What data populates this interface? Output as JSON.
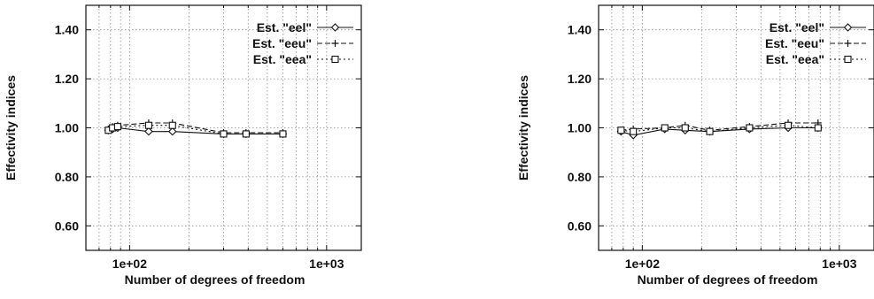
{
  "chart_data": [
    {
      "type": "line",
      "xscale": "log",
      "xlim": [
        60,
        1500
      ],
      "ylim": [
        0.5,
        1.5
      ],
      "grid": true,
      "legend_position": "top-right",
      "xlabel": "Number of degrees of freedom",
      "ylabel": "Effectivity indices",
      "xticks": [
        {
          "value": 100,
          "label": "1e+02"
        },
        {
          "value": 1000,
          "label": "1e+03"
        }
      ],
      "yticks": [
        {
          "value": 0.6,
          "label": "0.60"
        },
        {
          "value": 0.8,
          "label": "0.80"
        },
        {
          "value": 1.0,
          "label": "1.00"
        },
        {
          "value": 1.2,
          "label": "1.20"
        },
        {
          "value": 1.4,
          "label": "1.40"
        }
      ],
      "series": [
        {
          "name": "Est. \"eel\"",
          "marker": "diamond",
          "dash": "solid",
          "x": [
            78,
            82,
            87,
            125,
            165,
            300,
            390,
            600
          ],
          "y": [
            0.99,
            0.995,
            1.0,
            0.985,
            0.985,
            0.975,
            0.975,
            0.975
          ]
        },
        {
          "name": "Est. \"eeu\"",
          "marker": "plus",
          "dash": "dashed",
          "x": [
            78,
            82,
            87,
            125,
            165,
            300,
            390,
            600
          ],
          "y": [
            0.995,
            1.005,
            1.01,
            1.02,
            1.02,
            0.98,
            0.98,
            0.98
          ]
        },
        {
          "name": "Est. \"eea\"",
          "marker": "square",
          "dash": "dotted",
          "x": [
            78,
            82,
            87,
            125,
            165,
            300,
            390,
            600
          ],
          "y": [
            0.99,
            1.0,
            1.005,
            1.01,
            1.01,
            0.975,
            0.975,
            0.975
          ]
        }
      ]
    },
    {
      "type": "line",
      "xscale": "log",
      "xlim": [
        60,
        1500
      ],
      "ylim": [
        0.5,
        1.5
      ],
      "grid": true,
      "legend_position": "top-right",
      "xlabel": "Number of degrees of freedom",
      "ylabel": "Effectivity indices",
      "xticks": [
        {
          "value": 100,
          "label": "1e+02"
        },
        {
          "value": 1000,
          "label": "1e+03"
        }
      ],
      "yticks": [
        {
          "value": 0.6,
          "label": "0.60"
        },
        {
          "value": 0.8,
          "label": "0.80"
        },
        {
          "value": 1.0,
          "label": "1.00"
        },
        {
          "value": 1.2,
          "label": "1.20"
        },
        {
          "value": 1.4,
          "label": "1.40"
        }
      ],
      "series": [
        {
          "name": "Est. \"eel\"",
          "marker": "diamond",
          "dash": "solid",
          "x": [
            78,
            90,
            130,
            165,
            220,
            350,
            550,
            780
          ],
          "y": [
            0.985,
            0.97,
            0.995,
            0.99,
            0.985,
            0.995,
            1.0,
            1.0
          ]
        },
        {
          "name": "Est. \"eeu\"",
          "marker": "plus",
          "dash": "dashed",
          "x": [
            78,
            90,
            130,
            165,
            220,
            350,
            550,
            780
          ],
          "y": [
            0.99,
            0.995,
            1.0,
            1.01,
            0.99,
            1.005,
            1.02,
            1.02
          ]
        },
        {
          "name": "Est. \"eea\"",
          "marker": "square",
          "dash": "dotted",
          "x": [
            78,
            90,
            130,
            165,
            220,
            350,
            550,
            780
          ],
          "y": [
            0.99,
            0.985,
            1.0,
            1.0,
            0.985,
            1.0,
            1.01,
            1.0
          ]
        }
      ]
    }
  ]
}
